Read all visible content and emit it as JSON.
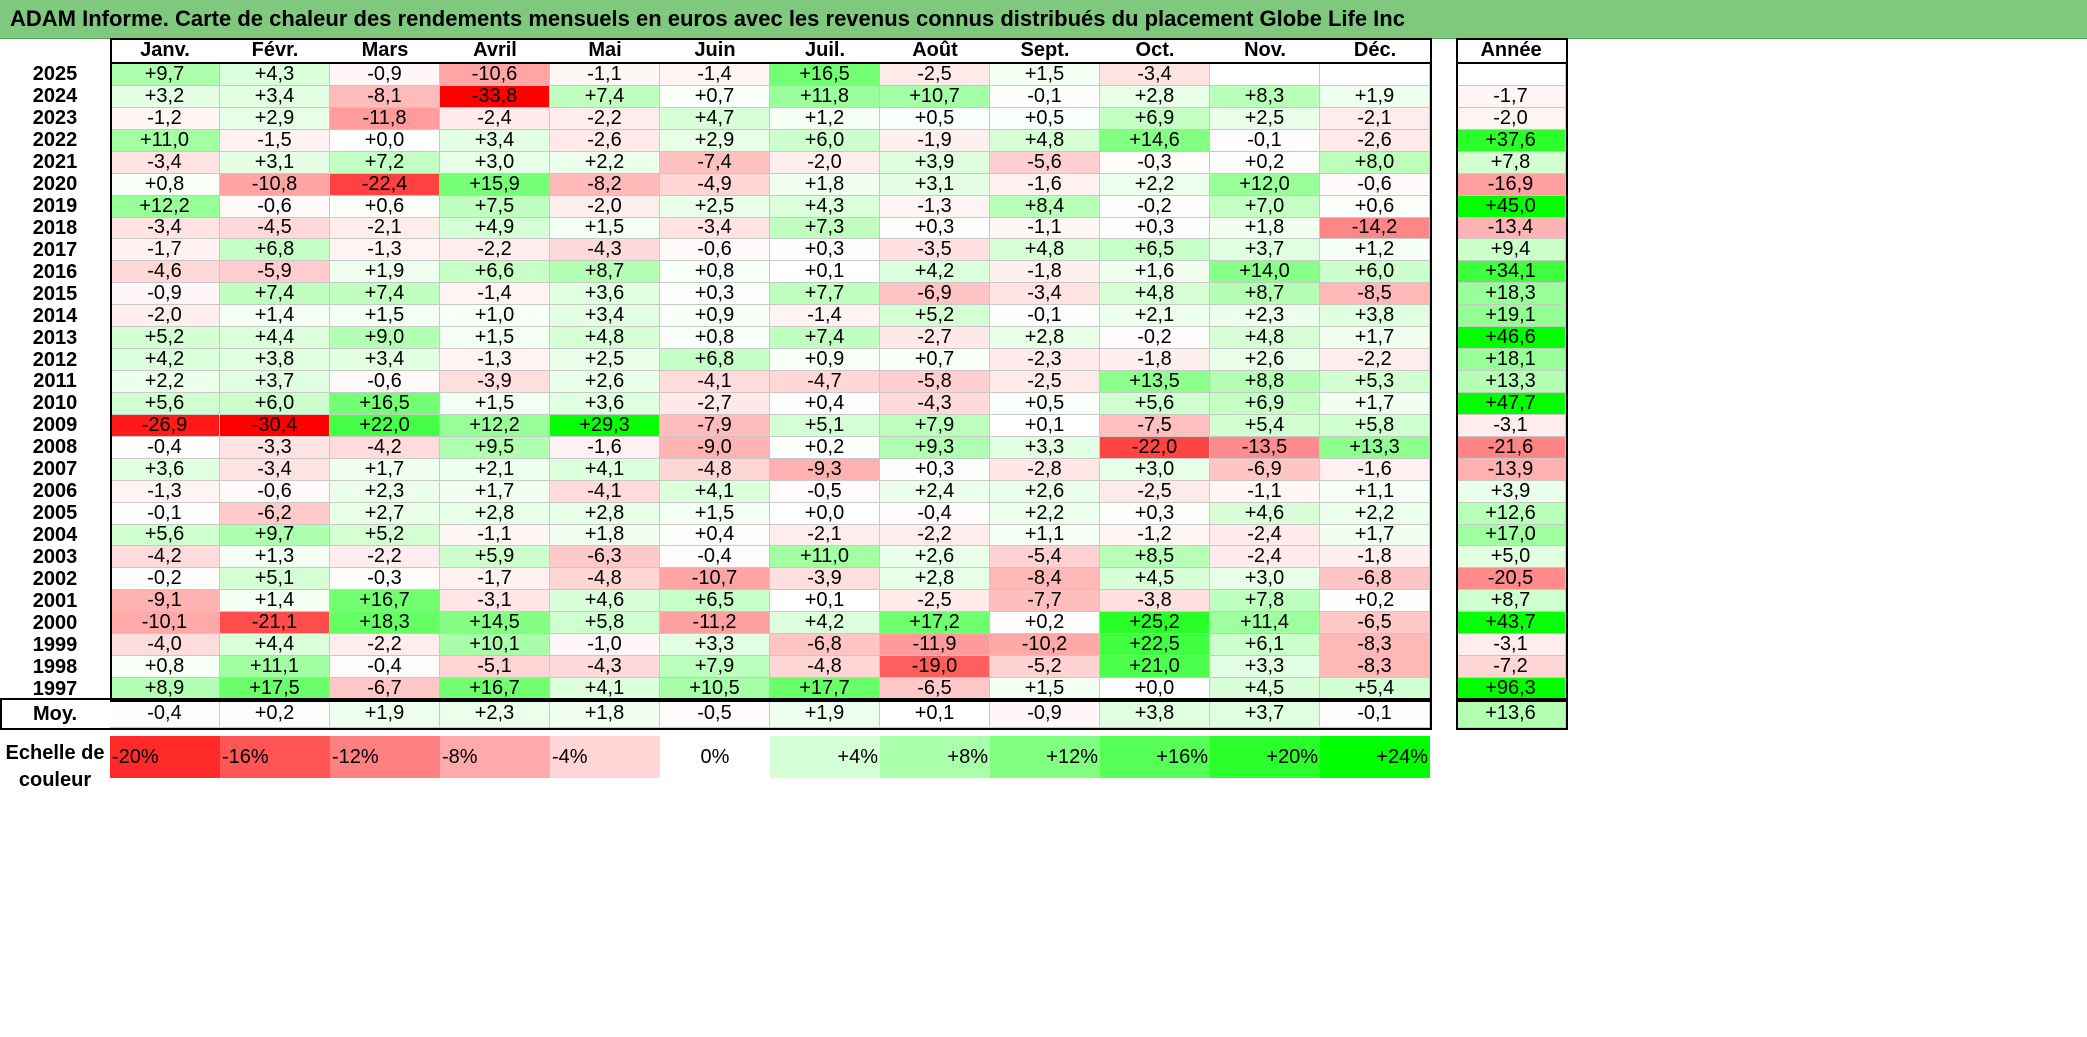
{
  "title": "ADAM Informe. Carte de chaleur des rendements mensuels en euros avec les revenus connus distribués du placement Globe Life Inc",
  "chart_data": {
    "type": "heatmap",
    "months": [
      "Janv.",
      "Févr.",
      "Mars",
      "Avril",
      "Mai",
      "Juin",
      "Juil.",
      "Août",
      "Sept.",
      "Oct.",
      "Nov.",
      "Déc."
    ],
    "year_header": "Année",
    "avg_label": "Moy.",
    "rows": [
      {
        "year": "2025",
        "values": [
          "+9,7",
          "+4,3",
          "-0,9",
          "-10,6",
          "-1,1",
          "-1,4",
          "+16,5",
          "-2,5",
          "+1,5",
          "-3,4",
          "",
          ""
        ],
        "total": ""
      },
      {
        "year": "2024",
        "values": [
          "+3,2",
          "+3,4",
          "-8,1",
          "-33,8",
          "+7,4",
          "+0,7",
          "+11,8",
          "+10,7",
          "-0,1",
          "+2,8",
          "+8,3",
          "+1,9"
        ],
        "total": "-1,7"
      },
      {
        "year": "2023",
        "values": [
          "-1,2",
          "+2,9",
          "-11,8",
          "-2,4",
          "-2,2",
          "+4,7",
          "+1,2",
          "+0,5",
          "+0,5",
          "+6,9",
          "+2,5",
          "-2,1"
        ],
        "total": "-2,0"
      },
      {
        "year": "2022",
        "values": [
          "+11,0",
          "-1,5",
          "+0,0",
          "+3,4",
          "-2,6",
          "+2,9",
          "+6,0",
          "-1,9",
          "+4,8",
          "+14,6",
          "-0,1",
          "-2,6"
        ],
        "total": "+37,6"
      },
      {
        "year": "2021",
        "values": [
          "-3,4",
          "+3,1",
          "+7,2",
          "+3,0",
          "+2,2",
          "-7,4",
          "-2,0",
          "+3,9",
          "-5,6",
          "-0,3",
          "+0,2",
          "+8,0"
        ],
        "total": "+7,8"
      },
      {
        "year": "2020",
        "values": [
          "+0,8",
          "-10,8",
          "-22,4",
          "+15,9",
          "-8,2",
          "-4,9",
          "+1,8",
          "+3,1",
          "-1,6",
          "+2,2",
          "+12,0",
          "-0,6"
        ],
        "total": "-16,9"
      },
      {
        "year": "2019",
        "values": [
          "+12,2",
          "-0,6",
          "+0,6",
          "+7,5",
          "-2,0",
          "+2,5",
          "+4,3",
          "-1,3",
          "+8,4",
          "-0,2",
          "+7,0",
          "+0,6"
        ],
        "total": "+45,0"
      },
      {
        "year": "2018",
        "values": [
          "-3,4",
          "-4,5",
          "-2,1",
          "+4,9",
          "+1,5",
          "-3,4",
          "+7,3",
          "+0,3",
          "-1,1",
          "+0,3",
          "+1,8",
          "-14,2"
        ],
        "total": "-13,4"
      },
      {
        "year": "2017",
        "values": [
          "-1,7",
          "+6,8",
          "-1,3",
          "-2,2",
          "-4,3",
          "-0,6",
          "+0,3",
          "-3,5",
          "+4,8",
          "+6,5",
          "+3,7",
          "+1,2"
        ],
        "total": "+9,4"
      },
      {
        "year": "2016",
        "values": [
          "-4,6",
          "-5,9",
          "+1,9",
          "+6,6",
          "+8,7",
          "+0,8",
          "+0,1",
          "+4,2",
          "-1,8",
          "+1,6",
          "+14,0",
          "+6,0"
        ],
        "total": "+34,1"
      },
      {
        "year": "2015",
        "values": [
          "-0,9",
          "+7,4",
          "+7,4",
          "-1,4",
          "+3,6",
          "+0,3",
          "+7,7",
          "-6,9",
          "-3,4",
          "+4,8",
          "+8,7",
          "-8,5"
        ],
        "total": "+18,3"
      },
      {
        "year": "2014",
        "values": [
          "-2,0",
          "+1,4",
          "+1,5",
          "+1,0",
          "+3,4",
          "+0,9",
          "-1,4",
          "+5,2",
          "-0,1",
          "+2,1",
          "+2,3",
          "+3,8"
        ],
        "total": "+19,1"
      },
      {
        "year": "2013",
        "values": [
          "+5,2",
          "+4,4",
          "+9,0",
          "+1,5",
          "+4,8",
          "+0,8",
          "+7,4",
          "-2,7",
          "+2,8",
          "-0,2",
          "+4,8",
          "+1,7"
        ],
        "total": "+46,6"
      },
      {
        "year": "2012",
        "values": [
          "+4,2",
          "+3,8",
          "+3,4",
          "-1,3",
          "+2,5",
          "+6,8",
          "+0,9",
          "+0,7",
          "-2,3",
          "-1,8",
          "+2,6",
          "-2,2"
        ],
        "total": "+18,1"
      },
      {
        "year": "2011",
        "values": [
          "+2,2",
          "+3,7",
          "-0,6",
          "-3,9",
          "+2,6",
          "-4,1",
          "-4,7",
          "-5,8",
          "-2,5",
          "+13,5",
          "+8,8",
          "+5,3"
        ],
        "total": "+13,3"
      },
      {
        "year": "2010",
        "values": [
          "+5,6",
          "+6,0",
          "+16,5",
          "+1,5",
          "+3,6",
          "-2,7",
          "+0,4",
          "-4,3",
          "+0,5",
          "+5,6",
          "+6,9",
          "+1,7"
        ],
        "total": "+47,7"
      },
      {
        "year": "2009",
        "values": [
          "-26,9",
          "-30,4",
          "+22,0",
          "+12,2",
          "+29,3",
          "-7,9",
          "+5,1",
          "+7,9",
          "+0,1",
          "-7,5",
          "+5,4",
          "+5,8"
        ],
        "total": "-3,1"
      },
      {
        "year": "2008",
        "values": [
          "-0,4",
          "-3,3",
          "-4,2",
          "+9,5",
          "-1,6",
          "-9,0",
          "+0,2",
          "+9,3",
          "+3,3",
          "-22,0",
          "-13,5",
          "+13,3"
        ],
        "total": "-21,6"
      },
      {
        "year": "2007",
        "values": [
          "+3,6",
          "-3,4",
          "+1,7",
          "+2,1",
          "+4,1",
          "-4,8",
          "-9,3",
          "+0,3",
          "-2,8",
          "+3,0",
          "-6,9",
          "-1,6"
        ],
        "total": "-13,9"
      },
      {
        "year": "2006",
        "values": [
          "-1,3",
          "-0,6",
          "+2,3",
          "+1,7",
          "-4,1",
          "+4,1",
          "-0,5",
          "+2,4",
          "+2,6",
          "-2,5",
          "-1,1",
          "+1,1"
        ],
        "total": "+3,9"
      },
      {
        "year": "2005",
        "values": [
          "-0,1",
          "-6,2",
          "+2,7",
          "+2,8",
          "+2,8",
          "+1,5",
          "+0,0",
          "-0,4",
          "+2,2",
          "+0,3",
          "+4,6",
          "+2,2"
        ],
        "total": "+12,6"
      },
      {
        "year": "2004",
        "values": [
          "+5,6",
          "+9,7",
          "+5,2",
          "-1,1",
          "+1,8",
          "+0,4",
          "-2,1",
          "-2,2",
          "+1,1",
          "-1,2",
          "-2,4",
          "+1,7"
        ],
        "total": "+17,0"
      },
      {
        "year": "2003",
        "values": [
          "-4,2",
          "+1,3",
          "-2,2",
          "+5,9",
          "-6,3",
          "-0,4",
          "+11,0",
          "+2,6",
          "-5,4",
          "+8,5",
          "-2,4",
          "-1,8"
        ],
        "total": "+5,0"
      },
      {
        "year": "2002",
        "values": [
          "-0,2",
          "+5,1",
          "-0,3",
          "-1,7",
          "-4,8",
          "-10,7",
          "-3,9",
          "+2,8",
          "-8,4",
          "+4,5",
          "+3,0",
          "-6,8"
        ],
        "total": "-20,5"
      },
      {
        "year": "2001",
        "values": [
          "-9,1",
          "+1,4",
          "+16,7",
          "-3,1",
          "+4,6",
          "+6,5",
          "+0,1",
          "-2,5",
          "-7,7",
          "-3,8",
          "+7,8",
          "+0,2"
        ],
        "total": "+8,7"
      },
      {
        "year": "2000",
        "values": [
          "-10,1",
          "-21,1",
          "+18,3",
          "+14,5",
          "+5,8",
          "-11,2",
          "+4,2",
          "+17,2",
          "+0,2",
          "+25,2",
          "+11,4",
          "-6,5"
        ],
        "total": "+43,7"
      },
      {
        "year": "1999",
        "values": [
          "-4,0",
          "+4,4",
          "-2,2",
          "+10,1",
          "-1,0",
          "+3,3",
          "-6,8",
          "-11,9",
          "-10,2",
          "+22,5",
          "+6,1",
          "-8,3"
        ],
        "total": "-3,1"
      },
      {
        "year": "1998",
        "values": [
          "+0,8",
          "+11,1",
          "-0,4",
          "-5,1",
          "-4,3",
          "+7,9",
          "-4,8",
          "-19,0",
          "-5,2",
          "+21,0",
          "+3,3",
          "-8,3"
        ],
        "total": "-7,2"
      },
      {
        "year": "1997",
        "values": [
          "+8,9",
          "+17,5",
          "-6,7",
          "+16,7",
          "+4,1",
          "+10,5",
          "+17,7",
          "-6,5",
          "+1,5",
          "+0,0",
          "+4,5",
          "+5,4"
        ],
        "total": "+96,3"
      }
    ],
    "averages": [
      "-0,4",
      "+0,2",
      "+1,9",
      "+2,3",
      "+1,8",
      "-0,5",
      "+1,9",
      "+0,1",
      "-0,9",
      "+3,8",
      "+3,7",
      "-0,1"
    ],
    "average_total": "+13,6",
    "scale_label_line1": "Echelle de",
    "scale_label_line2": "couleur",
    "scale": [
      "-20%",
      "-16%",
      "-12%",
      "-8%",
      "-4%",
      "0%",
      "+4%",
      "+8%",
      "+12%",
      "+16%",
      "+20%",
      "+24%"
    ],
    "colors": {
      "title_bar": "#7ec97e",
      "neg_max": "#ff0000",
      "pos_max": "#00ff00",
      "neutral": "#ffffff"
    }
  }
}
